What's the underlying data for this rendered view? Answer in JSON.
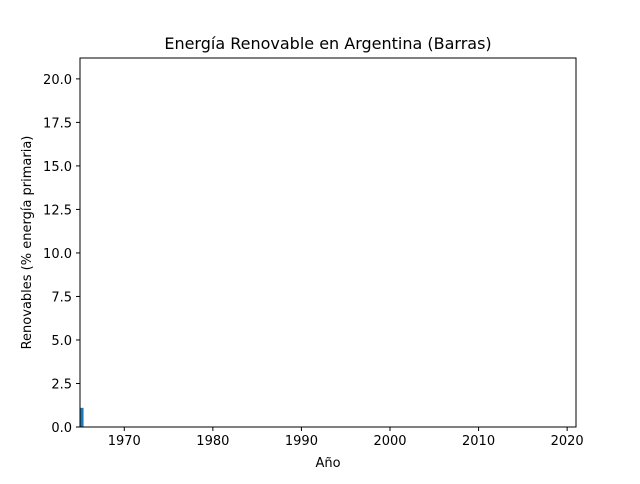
{
  "chart_data": {
    "type": "bar",
    "title": "Energía Renovable en Argentina (Barras)",
    "xlabel": "Año",
    "ylabel": "Renovables (% energía primaria)",
    "xlim": [
      1965,
      2021
    ],
    "ylim": [
      0,
      21.2
    ],
    "xticks": [
      1970,
      1980,
      1990,
      2000,
      2010,
      2020
    ],
    "xtick_labels": [
      "1970",
      "1980",
      "1990",
      "2000",
      "2010",
      "2020"
    ],
    "yticks": [
      0,
      2.5,
      5,
      7.5,
      10,
      12.5,
      15,
      17.5,
      20
    ],
    "ytick_labels": [
      "0.0",
      "2.5",
      "5.0",
      "7.5",
      "10.0",
      "12.5",
      "15.0",
      "17.5",
      "20.0"
    ],
    "bar_color": "#1f77b4",
    "bar_width_years": 0.8,
    "grid": false,
    "legend": "none",
    "x": [
      1965
    ],
    "values": [
      1.1
    ]
  }
}
